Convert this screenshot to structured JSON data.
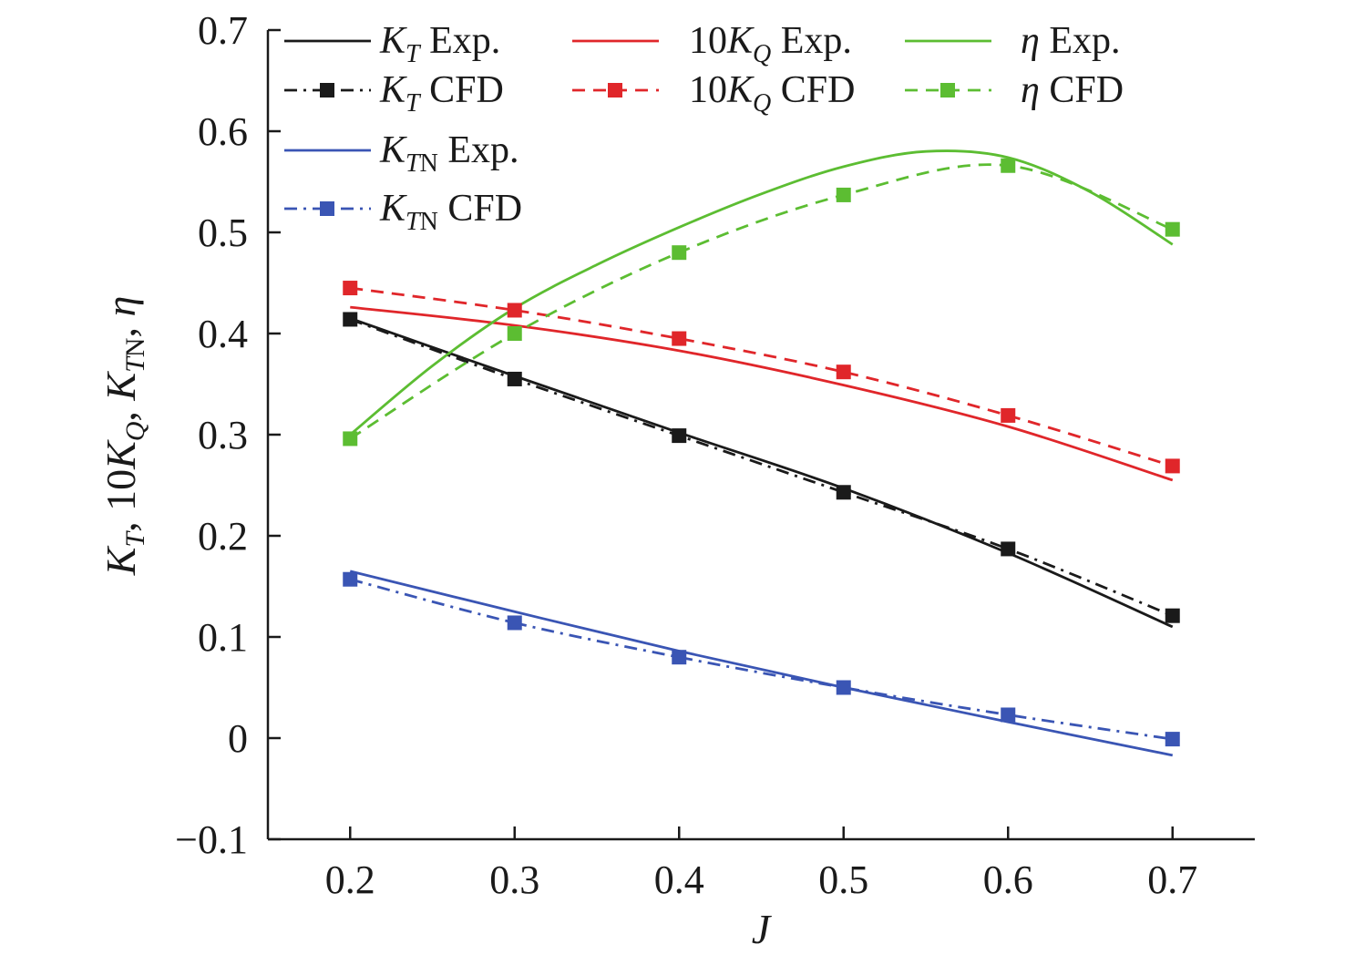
{
  "chart_data": {
    "type": "line",
    "xlabel": "J",
    "ylabel": "K_T, 10K_Q, K_TN, η",
    "xlim": [
      0.15,
      0.75
    ],
    "ylim": [
      -0.1,
      0.7
    ],
    "xticks": [
      "0.2",
      "0.3",
      "0.4",
      "0.5",
      "0.6",
      "0.7"
    ],
    "yticks": [
      "−0.1",
      "0",
      "0.1",
      "0.2",
      "0.3",
      "0.4",
      "0.5",
      "0.6",
      "0.7"
    ],
    "grid": false,
    "legend_position": "top",
    "series": [
      {
        "name": "K_T Exp.",
        "color": "#1a1a1a",
        "style": "solid",
        "x": [
          0.2,
          0.3,
          0.4,
          0.5,
          0.6,
          0.7
        ],
        "y": [
          0.415,
          0.358,
          0.302,
          0.247,
          0.183,
          0.11
        ]
      },
      {
        "name": "K_T CFD",
        "color": "#1a1a1a",
        "style": "dashdot",
        "marker": "square",
        "x": [
          0.2,
          0.3,
          0.4,
          0.5,
          0.6,
          0.7
        ],
        "y": [
          0.414,
          0.355,
          0.299,
          0.243,
          0.187,
          0.121
        ]
      },
      {
        "name": "10K_Q Exp.",
        "color": "#e0262a",
        "style": "solid",
        "x": [
          0.2,
          0.3,
          0.4,
          0.5,
          0.6,
          0.7
        ],
        "y": [
          0.426,
          0.408,
          0.383,
          0.349,
          0.308,
          0.255
        ]
      },
      {
        "name": "10K_Q CFD",
        "color": "#e0262a",
        "style": "dashed",
        "marker": "square",
        "x": [
          0.2,
          0.3,
          0.4,
          0.5,
          0.6,
          0.7
        ],
        "y": [
          0.445,
          0.423,
          0.395,
          0.362,
          0.319,
          0.269
        ]
      },
      {
        "name": "η Exp.",
        "color": "#5cbd32",
        "style": "solid",
        "x": [
          0.2,
          0.25,
          0.3,
          0.35,
          0.4,
          0.45,
          0.5,
          0.55,
          0.6,
          0.65,
          0.7
        ],
        "y": [
          0.3,
          0.368,
          0.425,
          0.468,
          0.505,
          0.538,
          0.565,
          0.58,
          0.574,
          0.54,
          0.488
        ]
      },
      {
        "name": "η CFD",
        "color": "#5cbd32",
        "style": "dashed",
        "marker": "square",
        "x": [
          0.2,
          0.3,
          0.4,
          0.5,
          0.6,
          0.7
        ],
        "y": [
          0.296,
          0.4,
          0.48,
          0.537,
          0.566,
          0.503
        ]
      },
      {
        "name": "K_TN Exp.",
        "color": "#3a55b4",
        "style": "solid",
        "x": [
          0.2,
          0.3,
          0.4,
          0.5,
          0.6,
          0.7
        ],
        "y": [
          0.165,
          0.125,
          0.086,
          0.05,
          0.016,
          -0.017
        ]
      },
      {
        "name": "K_TN CFD",
        "color": "#3a55b4",
        "style": "dashdot",
        "marker": "square",
        "x": [
          0.2,
          0.3,
          0.4,
          0.5,
          0.6,
          0.7
        ],
        "y": [
          0.157,
          0.114,
          0.08,
          0.05,
          0.023,
          -0.001
        ]
      }
    ]
  }
}
